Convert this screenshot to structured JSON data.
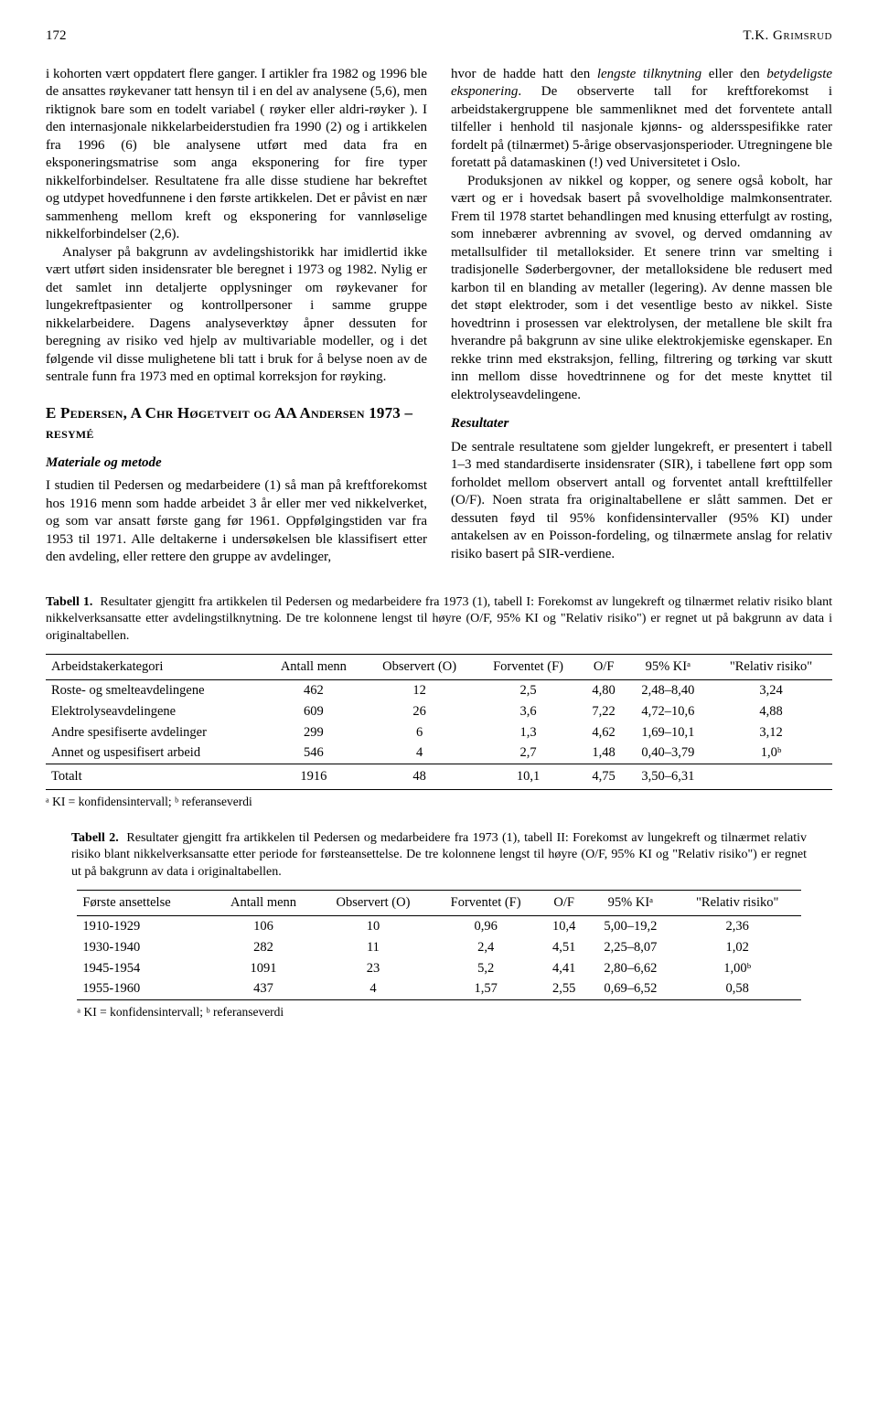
{
  "header": {
    "page_number": "172",
    "author": "T.K. Grimsrud"
  },
  "col1": {
    "p1": "i kohorten vært oppdatert flere ganger. I artikler fra 1982 og 1996 ble de ansattes røykevaner tatt hensyn til i en del av analysene (5,6), men riktignok bare som en todelt variabel ( røyker eller aldri-røyker ). I den internasjonale nikkelarbeiderstudien fra 1990 (2) og i artikkelen fra 1996 (6) ble analysene utført med data fra en eksponeringsmatrise som anga eksponering for fire typer nikkelforbindelser. Resultatene fra alle disse studiene har bekreftet og utdypet hovedfunnene i den første artikkelen. Det er påvist en nær sammenheng mellom kreft og eksponering for vannløselige nikkelforbindelser (2,6).",
    "p2": "Analyser på bakgrunn av avdelingshistorikk har imidlertid ikke vært utført siden insidensrater ble beregnet i 1973 og 1982. Nylig er det samlet inn detaljerte opplysninger om røykevaner for lungekreftpasienter og kontrollpersoner i samme gruppe nikkelarbeidere. Dagens analyseverktøy åpner dessuten for beregning av risiko ved hjelp av multivariable modeller, og i det følgende vil disse mulighetene bli tatt i bruk for å belyse noen av de sentrale funn fra 1973 med en optimal korreksjon for røyking.",
    "section_head": "E Pedersen, A Chr Høgetveit og AA Andersen 1973 – resymé",
    "sub1": "Materiale og metode",
    "p3": "I studien til Pedersen og medarbeidere (1) så man på kreftforekomst hos 1916 menn som hadde arbeidet 3 år eller mer ved nikkelverket, og som var ansatt første gang før 1961. Oppfølgingstiden var fra 1953 til 1971. Alle deltakerne i undersøkelsen ble klassifisert etter den avdeling, eller rettere den gruppe av avdelinger,"
  },
  "col2": {
    "p1a": "hvor de hadde hatt den ",
    "p1i1": "lengste tilknytning",
    "p1b": " eller den ",
    "p1i2": "betydeligste eksponering",
    "p1c": ". De observerte tall for kreftforekomst i arbeidstakergruppene ble sammenliknet med det forventete antall tilfeller i henhold til nasjonale kjønns- og aldersspesifikke rater fordelt på (tilnærmet) 5-årige observasjonsperioder. Utregningene ble foretatt på datamaskinen (!) ved Universitetet i Oslo.",
    "p2": "Produksjonen av nikkel og kopper, og senere også kobolt, har vært og er i hovedsak basert på svovelholdige malmkonsentrater. Frem til 1978 startet behandlingen med knusing etterfulgt av rosting, som innebærer avbrenning av svovel, og derved omdanning av metallsulfider til metalloksider. Et senere trinn var smelting i tradisjonelle Søderbergovner, der metalloksidene ble redusert med karbon til en blanding av metaller (legering). Av denne massen ble det støpt elektroder, som i det vesentlige besto av nikkel. Siste hovedtrinn i prosessen var elektrolysen, der metallene ble skilt fra hverandre på bakgrunn av sine ulike elektrokjemiske egenskaper. En rekke trinn med ekstraksjon, felling, filtrering og tørking var skutt inn mellom disse hovedtrinnene og for det meste knyttet til elektrolyseavdelingene.",
    "sub2": "Resultater",
    "p3": "De sentrale resultatene som gjelder lungekreft, er presentert i tabell 1–3 med standardiserte insidensrater (SIR), i tabellene ført opp som forholdet mellom observert antall og forventet antall krefttilfeller (O/F). Noen strata fra originaltabellene er slått sammen. Det er dessuten føyd til 95% konfidensintervaller (95% KI) under antakelsen av en Poisson-fordeling, og tilnærmete anslag for relativ risiko basert på SIR-verdiene."
  },
  "table1": {
    "caption_bold": "Tabell 1.",
    "caption": "Resultater gjengitt fra artikkelen til Pedersen og medarbeidere fra 1973 (1), tabell I: Forekomst av lungekreft og tilnærmet relativ risiko blant nikkelverksansatte etter avdelingstilknytning. De tre kolonnene lengst til høyre (O/F, 95% KI og \"Relativ risiko\") er regnet ut på bakgrunn av data i originaltabellen.",
    "headers": [
      "Arbeidstakerkategori",
      "Antall menn",
      "Observert (O)",
      "Forventet (F)",
      "O/F",
      "95% KIᵃ",
      "\"Relativ risiko\""
    ],
    "rows": [
      [
        "Roste- og smelteavdelingene",
        "462",
        "12",
        "2,5",
        "4,80",
        "2,48–8,40",
        "3,24"
      ],
      [
        "Elektrolyseavdelingene",
        "609",
        "26",
        "3,6",
        "7,22",
        "4,72–10,6",
        "4,88"
      ],
      [
        "Andre spesifiserte avdelinger",
        "299",
        "6",
        "1,3",
        "4,62",
        "1,69–10,1",
        "3,12"
      ],
      [
        "Annet og uspesifisert arbeid",
        "546",
        "4",
        "2,7",
        "1,48",
        "0,40–3,79",
        "1,0ᵇ"
      ]
    ],
    "total_row": [
      "Totalt",
      "1916",
      "48",
      "10,1",
      "4,75",
      "3,50–6,31",
      ""
    ],
    "footnote": "ᵃ KI = konfidensintervall;  ᵇ referanseverdi"
  },
  "table2": {
    "caption_bold": "Tabell 2.",
    "caption": "Resultater gjengitt fra artikkelen til Pedersen og medarbeidere fra 1973 (1), tabell II: Forekomst av lungekreft og tilnærmet relativ risiko blant nikkelverksansatte etter periode for førsteansettelse. De tre kolonnene lengst til høyre (O/F, 95% KI og \"Relativ risiko\") er regnet ut på bakgrunn av data i originaltabellen.",
    "headers": [
      "Første ansettelse",
      "Antall menn",
      "Observert (O)",
      "Forventet (F)",
      "O/F",
      "95% KIᵃ",
      "\"Relativ risiko\""
    ],
    "rows": [
      [
        "1910-1929",
        "106",
        "10",
        "0,96",
        "10,4",
        "5,00–19,2",
        "2,36"
      ],
      [
        "1930-1940",
        "282",
        "11",
        "2,4",
        "4,51",
        "2,25–8,07",
        "1,02"
      ],
      [
        "1945-1954",
        "1091",
        "23",
        "5,2",
        "4,41",
        "2,80–6,62",
        "1,00ᵇ"
      ],
      [
        "1955-1960",
        "437",
        "4",
        "1,57",
        "2,55",
        "0,69–6,52",
        "0,58"
      ]
    ],
    "footnote": "ᵃ KI = konfidensintervall;  ᵇ referanseverdi"
  }
}
